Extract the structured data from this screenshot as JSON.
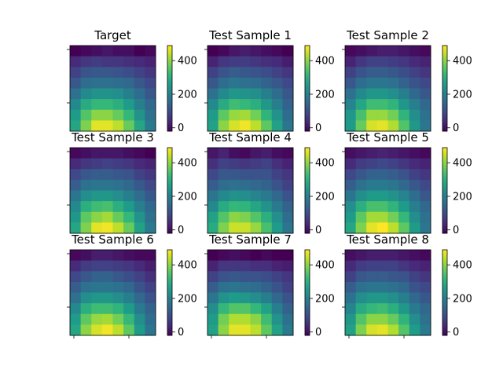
{
  "chart_data": {
    "type": "heatmap",
    "layout": {
      "rows": 3,
      "cols": 3
    },
    "colormap": "viridis",
    "clim": [
      -20,
      490
    ],
    "colorbar_ticks": [
      0,
      200,
      400
    ],
    "colorbar_tick_labels": [
      "0",
      "200",
      "400"
    ],
    "panels": [
      {
        "title": "Target",
        "values": [
          [
            -20,
            -10,
            0,
            10,
            0,
            0,
            -20,
            -10
          ],
          [
            40,
            60,
            70,
            60,
            60,
            50,
            40,
            30
          ],
          [
            80,
            110,
            120,
            120,
            110,
            100,
            80,
            60
          ],
          [
            120,
            160,
            170,
            170,
            160,
            150,
            120,
            90
          ],
          [
            170,
            220,
            240,
            240,
            230,
            200,
            160,
            120
          ],
          [
            220,
            290,
            320,
            320,
            300,
            260,
            200,
            150
          ],
          [
            260,
            350,
            400,
            400,
            370,
            320,
            240,
            170
          ],
          [
            280,
            390,
            470,
            470,
            440,
            370,
            280,
            190
          ]
        ]
      },
      {
        "title": "Test Sample 1",
        "values": [
          [
            -20,
            -10,
            10,
            20,
            10,
            0,
            -10,
            -20
          ],
          [
            30,
            60,
            70,
            70,
            60,
            50,
            40,
            20
          ],
          [
            80,
            110,
            130,
            120,
            110,
            100,
            80,
            60
          ],
          [
            120,
            160,
            180,
            170,
            160,
            140,
            120,
            90
          ],
          [
            170,
            220,
            250,
            240,
            230,
            200,
            160,
            120
          ],
          [
            220,
            290,
            330,
            320,
            300,
            250,
            200,
            140
          ],
          [
            260,
            360,
            410,
            420,
            380,
            310,
            240,
            160
          ],
          [
            270,
            400,
            460,
            480,
            440,
            360,
            270,
            180
          ]
        ]
      },
      {
        "title": "Test Sample 2",
        "values": [
          [
            -10,
            0,
            10,
            20,
            20,
            10,
            0,
            -10
          ],
          [
            30,
            60,
            80,
            80,
            70,
            60,
            40,
            30
          ],
          [
            80,
            110,
            130,
            130,
            120,
            100,
            80,
            60
          ],
          [
            120,
            160,
            180,
            180,
            170,
            140,
            110,
            90
          ],
          [
            170,
            220,
            250,
            250,
            230,
            200,
            150,
            120
          ],
          [
            210,
            280,
            330,
            330,
            310,
            250,
            200,
            150
          ],
          [
            250,
            340,
            410,
            410,
            380,
            310,
            230,
            170
          ],
          [
            260,
            370,
            460,
            470,
            430,
            350,
            250,
            180
          ]
        ]
      },
      {
        "title": "Test Sample 3",
        "values": [
          [
            -10,
            0,
            10,
            10,
            10,
            0,
            -10,
            -20
          ],
          [
            40,
            60,
            70,
            80,
            70,
            60,
            40,
            30
          ],
          [
            90,
            120,
            130,
            130,
            120,
            110,
            80,
            60
          ],
          [
            130,
            170,
            180,
            180,
            170,
            150,
            120,
            90
          ],
          [
            180,
            230,
            250,
            250,
            230,
            200,
            160,
            120
          ],
          [
            220,
            300,
            330,
            340,
            300,
            260,
            200,
            150
          ],
          [
            250,
            360,
            400,
            420,
            370,
            320,
            240,
            170
          ],
          [
            280,
            390,
            470,
            480,
            440,
            370,
            270,
            190
          ]
        ]
      },
      {
        "title": "Test Sample 4",
        "values": [
          [
            10,
            30,
            0,
            -10,
            10,
            20,
            0,
            -10
          ],
          [
            50,
            80,
            70,
            60,
            70,
            80,
            50,
            30
          ],
          [
            90,
            120,
            120,
            110,
            110,
            110,
            80,
            60
          ],
          [
            130,
            160,
            170,
            160,
            150,
            140,
            110,
            80
          ],
          [
            180,
            220,
            240,
            230,
            210,
            190,
            150,
            110
          ],
          [
            220,
            290,
            320,
            310,
            280,
            240,
            190,
            140
          ],
          [
            270,
            350,
            400,
            390,
            350,
            300,
            230,
            160
          ],
          [
            290,
            390,
            450,
            450,
            410,
            340,
            260,
            180
          ]
        ]
      },
      {
        "title": "Test Sample 5",
        "values": [
          [
            0,
            10,
            20,
            30,
            20,
            10,
            0,
            -10
          ],
          [
            40,
            70,
            80,
            90,
            80,
            60,
            40,
            30
          ],
          [
            90,
            120,
            140,
            140,
            130,
            110,
            80,
            60
          ],
          [
            130,
            170,
            190,
            190,
            180,
            150,
            120,
            90
          ],
          [
            180,
            230,
            260,
            260,
            240,
            210,
            160,
            120
          ],
          [
            230,
            300,
            340,
            340,
            310,
            260,
            200,
            150
          ],
          [
            260,
            360,
            420,
            420,
            380,
            320,
            230,
            170
          ],
          [
            280,
            390,
            470,
            490,
            440,
            360,
            260,
            180
          ]
        ]
      },
      {
        "title": "Test Sample 6",
        "values": [
          [
            -10,
            0,
            20,
            20,
            10,
            0,
            -10,
            -10
          ],
          [
            40,
            70,
            80,
            80,
            70,
            60,
            40,
            20
          ],
          [
            90,
            120,
            140,
            140,
            120,
            100,
            80,
            50
          ],
          [
            130,
            170,
            180,
            180,
            170,
            150,
            110,
            80
          ],
          [
            170,
            230,
            250,
            250,
            230,
            200,
            150,
            110
          ],
          [
            220,
            300,
            330,
            330,
            310,
            260,
            190,
            140
          ],
          [
            260,
            360,
            410,
            420,
            380,
            320,
            230,
            160
          ],
          [
            280,
            400,
            460,
            480,
            440,
            360,
            260,
            180
          ]
        ]
      },
      {
        "title": "Test Sample 7",
        "values": [
          [
            -20,
            -10,
            0,
            -10,
            -20,
            -10,
            -20,
            -20
          ],
          [
            30,
            60,
            60,
            60,
            50,
            50,
            30,
            20
          ],
          [
            80,
            110,
            120,
            110,
            110,
            100,
            80,
            60
          ],
          [
            130,
            170,
            180,
            170,
            160,
            140,
            110,
            80
          ],
          [
            180,
            240,
            260,
            250,
            230,
            200,
            150,
            110
          ],
          [
            230,
            320,
            350,
            350,
            320,
            270,
            200,
            140
          ],
          [
            260,
            380,
            430,
            430,
            400,
            330,
            240,
            170
          ],
          [
            270,
            400,
            470,
            470,
            440,
            360,
            270,
            190
          ]
        ]
      },
      {
        "title": "Test Sample 8",
        "values": [
          [
            0,
            10,
            20,
            20,
            20,
            10,
            0,
            -10
          ],
          [
            40,
            70,
            80,
            80,
            80,
            60,
            40,
            30
          ],
          [
            80,
            120,
            130,
            130,
            120,
            110,
            80,
            60
          ],
          [
            130,
            170,
            180,
            180,
            170,
            150,
            110,
            90
          ],
          [
            170,
            230,
            250,
            250,
            230,
            200,
            150,
            120
          ],
          [
            210,
            290,
            320,
            330,
            300,
            250,
            190,
            150
          ],
          [
            250,
            350,
            400,
            400,
            370,
            310,
            230,
            170
          ],
          [
            270,
            390,
            460,
            470,
            430,
            350,
            260,
            190
          ]
        ]
      }
    ]
  }
}
